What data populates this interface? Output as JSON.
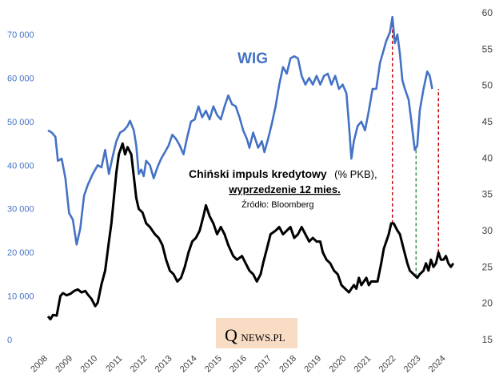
{
  "chart_data": {
    "type": "line",
    "title": "Chiński impuls kredytowy",
    "title_unit": "(% PKB),",
    "subtitle": "wyprzedzenie 12 mies.",
    "source": "Źródło: Bloomberg",
    "series_label_wig": "WIG",
    "watermark": "QNEWS.PL",
    "x_ticks": [
      "2008",
      "2009",
      "2010",
      "2011",
      "2012",
      "2013",
      "2014",
      "2015",
      "2016",
      "2017",
      "2018",
      "2019",
      "2020",
      "2021",
      "2022",
      "2023",
      "2024"
    ],
    "y_left": {
      "min": 0,
      "max": 75000,
      "ticks": [
        0,
        10000,
        20000,
        30000,
        40000,
        50000,
        60000,
        70000
      ],
      "tick_labels": [
        "0",
        "10 000",
        "20 000",
        "30 000",
        "40 000",
        "50 000",
        "60 000",
        "70 000"
      ]
    },
    "y_right": {
      "min": 15,
      "max": 60,
      "ticks": [
        15,
        20,
        25,
        30,
        35,
        40,
        45,
        50,
        55,
        60
      ],
      "tick_labels": [
        "15",
        "20",
        "25",
        "30",
        "35",
        "40",
        "45",
        "50",
        "55",
        "60"
      ]
    },
    "series": [
      {
        "name": "WIG",
        "axis": "left",
        "color": "#4472c4",
        "points": [
          [
            2008.0,
            48000
          ],
          [
            2008.15,
            47500
          ],
          [
            2008.3,
            46500
          ],
          [
            2008.4,
            41000
          ],
          [
            2008.55,
            41500
          ],
          [
            2008.7,
            37000
          ],
          [
            2008.85,
            29000
          ],
          [
            2009.0,
            27500
          ],
          [
            2009.15,
            21800
          ],
          [
            2009.3,
            25500
          ],
          [
            2009.45,
            33000
          ],
          [
            2009.6,
            35500
          ],
          [
            2009.8,
            38000
          ],
          [
            2010.0,
            40000
          ],
          [
            2010.15,
            39500
          ],
          [
            2010.3,
            43500
          ],
          [
            2010.45,
            38000
          ],
          [
            2010.6,
            42000
          ],
          [
            2010.75,
            45500
          ],
          [
            2010.9,
            47500
          ],
          [
            2011.05,
            48000
          ],
          [
            2011.2,
            49000
          ],
          [
            2011.3,
            50200
          ],
          [
            2011.45,
            48000
          ],
          [
            2011.55,
            44500
          ],
          [
            2011.65,
            38000
          ],
          [
            2011.75,
            39000
          ],
          [
            2011.85,
            37500
          ],
          [
            2011.95,
            41000
          ],
          [
            2012.1,
            40000
          ],
          [
            2012.25,
            37000
          ],
          [
            2012.4,
            39500
          ],
          [
            2012.55,
            41500
          ],
          [
            2012.7,
            43000
          ],
          [
            2012.85,
            44500
          ],
          [
            2013.0,
            47000
          ],
          [
            2013.15,
            46000
          ],
          [
            2013.3,
            44500
          ],
          [
            2013.45,
            42500
          ],
          [
            2013.6,
            46500
          ],
          [
            2013.75,
            50000
          ],
          [
            2013.9,
            50500
          ],
          [
            2014.05,
            53500
          ],
          [
            2014.2,
            51000
          ],
          [
            2014.35,
            52500
          ],
          [
            2014.5,
            50500
          ],
          [
            2014.65,
            53500
          ],
          [
            2014.8,
            51500
          ],
          [
            2014.95,
            50500
          ],
          [
            2015.1,
            53500
          ],
          [
            2015.25,
            56000
          ],
          [
            2015.4,
            54000
          ],
          [
            2015.55,
            53500
          ],
          [
            2015.7,
            51000
          ],
          [
            2015.85,
            48000
          ],
          [
            2016.0,
            46000
          ],
          [
            2016.1,
            44000
          ],
          [
            2016.25,
            47500
          ],
          [
            2016.45,
            44000
          ],
          [
            2016.6,
            45500
          ],
          [
            2016.7,
            43000
          ],
          [
            2016.85,
            46000
          ],
          [
            2017.0,
            49500
          ],
          [
            2017.15,
            53500
          ],
          [
            2017.3,
            58500
          ],
          [
            2017.45,
            62500
          ],
          [
            2017.6,
            61000
          ],
          [
            2017.75,
            64500
          ],
          [
            2017.9,
            65000
          ],
          [
            2018.05,
            64500
          ],
          [
            2018.2,
            60500
          ],
          [
            2018.35,
            58500
          ],
          [
            2018.5,
            60000
          ],
          [
            2018.65,
            58500
          ],
          [
            2018.8,
            60500
          ],
          [
            2018.95,
            58500
          ],
          [
            2019.1,
            60500
          ],
          [
            2019.25,
            61000
          ],
          [
            2019.4,
            58500
          ],
          [
            2019.55,
            60500
          ],
          [
            2019.7,
            57500
          ],
          [
            2019.85,
            58500
          ],
          [
            2020.0,
            56500
          ],
          [
            2020.1,
            49500
          ],
          [
            2020.2,
            41500
          ],
          [
            2020.3,
            45500
          ],
          [
            2020.45,
            49000
          ],
          [
            2020.6,
            50000
          ],
          [
            2020.75,
            48000
          ],
          [
            2020.9,
            52500
          ],
          [
            2021.05,
            57500
          ],
          [
            2021.2,
            57500
          ],
          [
            2021.35,
            63500
          ],
          [
            2021.5,
            66500
          ],
          [
            2021.6,
            68500
          ],
          [
            2021.75,
            70500
          ],
          [
            2021.85,
            74000
          ],
          [
            2021.95,
            68000
          ],
          [
            2022.05,
            70000
          ],
          [
            2022.15,
            65500
          ],
          [
            2022.25,
            59500
          ],
          [
            2022.35,
            57500
          ],
          [
            2022.5,
            55000
          ],
          [
            2022.6,
            50500
          ],
          [
            2022.75,
            43500
          ],
          [
            2022.85,
            44500
          ],
          [
            2022.95,
            52500
          ],
          [
            2023.1,
            57500
          ],
          [
            2023.25,
            61500
          ],
          [
            2023.35,
            60500
          ],
          [
            2023.45,
            57500
          ]
        ]
      },
      {
        "name": "Chiński impuls kredytowy (% PKB)",
        "axis": "right",
        "color": "#000000",
        "points": [
          [
            2008.0,
            18.2
          ],
          [
            2008.1,
            17.8
          ],
          [
            2008.2,
            18.4
          ],
          [
            2008.35,
            18.3
          ],
          [
            2008.5,
            21.0
          ],
          [
            2008.6,
            21.4
          ],
          [
            2008.75,
            21.1
          ],
          [
            2008.9,
            21.3
          ],
          [
            2009.05,
            21.7
          ],
          [
            2009.2,
            21.9
          ],
          [
            2009.35,
            21.5
          ],
          [
            2009.5,
            21.7
          ],
          [
            2009.6,
            21.2
          ],
          [
            2009.75,
            20.6
          ],
          [
            2009.9,
            19.6
          ],
          [
            2010.0,
            20.1
          ],
          [
            2010.15,
            22.6
          ],
          [
            2010.3,
            24.5
          ],
          [
            2010.45,
            28.5
          ],
          [
            2010.55,
            31.0
          ],
          [
            2010.65,
            34.5
          ],
          [
            2010.75,
            38.0
          ],
          [
            2010.85,
            40.5
          ],
          [
            2011.0,
            42.0
          ],
          [
            2011.1,
            40.5
          ],
          [
            2011.2,
            41.5
          ],
          [
            2011.35,
            40.5
          ],
          [
            2011.45,
            37.5
          ],
          [
            2011.55,
            34.5
          ],
          [
            2011.65,
            33.0
          ],
          [
            2011.8,
            32.5
          ],
          [
            2011.95,
            31.0
          ],
          [
            2012.1,
            30.5
          ],
          [
            2012.3,
            29.5
          ],
          [
            2012.45,
            29.0
          ],
          [
            2012.6,
            28.0
          ],
          [
            2012.75,
            26.0
          ],
          [
            2012.9,
            24.5
          ],
          [
            2013.05,
            24.0
          ],
          [
            2013.2,
            23.0
          ],
          [
            2013.35,
            23.5
          ],
          [
            2013.5,
            25.0
          ],
          [
            2013.65,
            27.0
          ],
          [
            2013.8,
            28.5
          ],
          [
            2013.95,
            29.0
          ],
          [
            2014.1,
            30.0
          ],
          [
            2014.25,
            32.0
          ],
          [
            2014.35,
            33.5
          ],
          [
            2014.5,
            32.0
          ],
          [
            2014.65,
            31.0
          ],
          [
            2014.8,
            29.5
          ],
          [
            2014.95,
            30.5
          ],
          [
            2015.1,
            29.5
          ],
          [
            2015.25,
            28.0
          ],
          [
            2015.45,
            26.5
          ],
          [
            2015.6,
            26.0
          ],
          [
            2015.8,
            26.5
          ],
          [
            2015.95,
            25.5
          ],
          [
            2016.1,
            24.5
          ],
          [
            2016.25,
            24.0
          ],
          [
            2016.4,
            23.0
          ],
          [
            2016.55,
            24.0
          ],
          [
            2016.65,
            25.5
          ],
          [
            2016.8,
            27.5
          ],
          [
            2016.95,
            29.5
          ],
          [
            2017.15,
            30.0
          ],
          [
            2017.3,
            30.5
          ],
          [
            2017.45,
            29.5
          ],
          [
            2017.6,
            30.0
          ],
          [
            2017.75,
            30.5
          ],
          [
            2017.9,
            29.0
          ],
          [
            2018.05,
            29.5
          ],
          [
            2018.2,
            30.5
          ],
          [
            2018.35,
            29.5
          ],
          [
            2018.5,
            28.5
          ],
          [
            2018.65,
            29.0
          ],
          [
            2018.8,
            28.5
          ],
          [
            2018.95,
            28.5
          ],
          [
            2019.05,
            27.0
          ],
          [
            2019.2,
            26.0
          ],
          [
            2019.35,
            25.5
          ],
          [
            2019.5,
            24.5
          ],
          [
            2019.65,
            24.0
          ],
          [
            2019.8,
            22.5
          ],
          [
            2019.95,
            22.0
          ],
          [
            2020.1,
            21.5
          ],
          [
            2020.2,
            22.0
          ],
          [
            2020.3,
            22.5
          ],
          [
            2020.4,
            22.0
          ],
          [
            2020.5,
            23.5
          ],
          [
            2020.6,
            22.5
          ],
          [
            2020.7,
            23.0
          ],
          [
            2020.8,
            23.5
          ],
          [
            2020.9,
            22.5
          ],
          [
            2021.0,
            23.0
          ],
          [
            2021.1,
            23.0
          ],
          [
            2021.25,
            23.0
          ],
          [
            2021.4,
            25.5
          ],
          [
            2021.5,
            27.5
          ],
          [
            2021.6,
            28.5
          ],
          [
            2021.7,
            29.5
          ],
          [
            2021.8,
            31.0
          ],
          [
            2021.9,
            31.0
          ],
          [
            2022.05,
            30.0
          ],
          [
            2022.15,
            29.5
          ],
          [
            2022.3,
            27.5
          ],
          [
            2022.45,
            25.5
          ],
          [
            2022.55,
            24.5
          ],
          [
            2022.7,
            24.0
          ],
          [
            2022.85,
            23.5
          ],
          [
            2022.95,
            24.0
          ],
          [
            2023.1,
            24.5
          ],
          [
            2023.2,
            25.5
          ],
          [
            2023.3,
            24.5
          ],
          [
            2023.4,
            26.0
          ],
          [
            2023.5,
            25.0
          ],
          [
            2023.6,
            25.5
          ],
          [
            2023.7,
            27.0
          ],
          [
            2023.8,
            26.0
          ],
          [
            2023.9,
            26.0
          ],
          [
            2024.0,
            26.5
          ],
          [
            2024.1,
            25.5
          ],
          [
            2024.2,
            25.0
          ],
          [
            2024.3,
            25.5
          ]
        ]
      }
    ],
    "markers": [
      {
        "x": 2021.85,
        "from_series": "Chiński impuls kredytowy (% PKB)",
        "to_series": "WIG",
        "color": "#c00000"
      },
      {
        "x": 2022.8,
        "from_series": "Chiński impuls kredytowy (% PKB)",
        "to_series": "WIG",
        "color": "#2e8b3a"
      },
      {
        "x": 2023.7,
        "from_series": "Chiński impuls kredytowy (% PKB)",
        "to_series": "WIG",
        "color": "#c00000"
      }
    ]
  }
}
